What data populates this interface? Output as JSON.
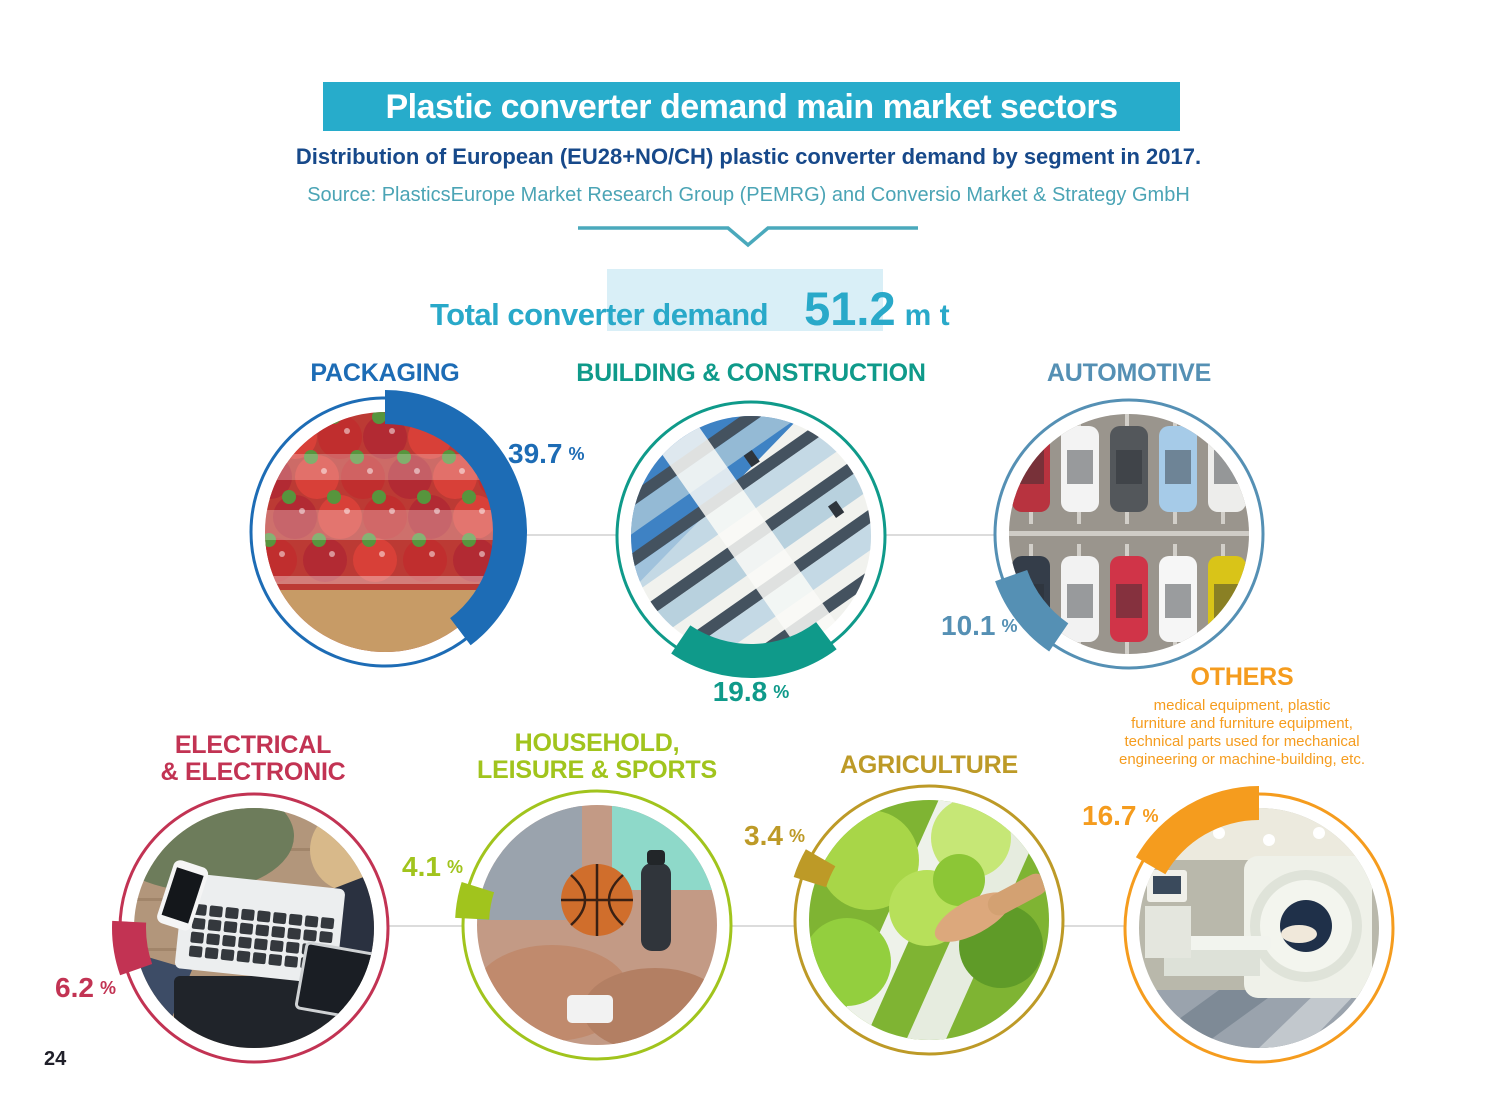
{
  "page": {
    "title": "Plastic converter demand main market sectors",
    "subtitle": "Distribution of European (EU28+NO/CH) plastic converter demand by segment in 2017.",
    "source": "Source: PlasticsEurope Market Research Group (PEMRG) and Conversio Market & Strategy GmbH",
    "page_number": "24"
  },
  "total": {
    "label": "Total converter demand",
    "value": "51.2",
    "unit": "m t"
  },
  "chart_data": {
    "type": "pie",
    "title": "Plastic converter demand main market sectors",
    "subtitle": "Distribution of European (EU28+NO/CH) plastic converter demand by segment in 2017.",
    "source": "PlasticsEurope Market Research Group (PEMRG) and Conversio Market & Strategy GmbH",
    "region": "EU28+NO/CH",
    "year": 2017,
    "total_value": 51.2,
    "total_unit": "m t",
    "percent_sign": "%",
    "direction": "clockwise",
    "start_angle_deg": 0,
    "segments": [
      {
        "label": "PACKAGING",
        "display": "PACKAGING",
        "pct": 39.7,
        "color": "#1d6cb5",
        "photo": "strawberries-packaging-photo"
      },
      {
        "label": "BUILDING & CONSTRUCTION",
        "display": "BUILDING & CONSTRUCTION",
        "pct": 19.8,
        "color": "#0f9a8a",
        "photo": "apartment-building-photo"
      },
      {
        "label": "AUTOMOTIVE",
        "display": "AUTOMOTIVE",
        "pct": 10.1,
        "color": "#5590b4",
        "photo": "parking-cars-photo"
      },
      {
        "label": "ELECTRICAL & ELECTRONIC",
        "display": "ELECTRICAL\n& ELECTRONIC",
        "pct": 6.2,
        "color": "#c23353",
        "photo": "family-devices-photo"
      },
      {
        "label": "HOUSEHOLD, LEISURE & SPORTS",
        "display": "HOUSEHOLD,\nLEISURE & SPORTS",
        "pct": 4.1,
        "color": "#a1c41d",
        "photo": "sports-bench-photo"
      },
      {
        "label": "AGRICULTURE",
        "display": "AGRICULTURE",
        "pct": 3.4,
        "color": "#bd9a27",
        "photo": "hydroponic-lettuce-photo"
      },
      {
        "label": "OTHERS",
        "display": "OTHERS",
        "pct": 16.7,
        "color": "#f59c1e",
        "photo": "mri-scanner-photo",
        "description": "medical equipment, plastic\nfurniture and furniture equipment,\ntechnical parts used for mechanical\nengineering or machine-building, etc."
      }
    ]
  }
}
